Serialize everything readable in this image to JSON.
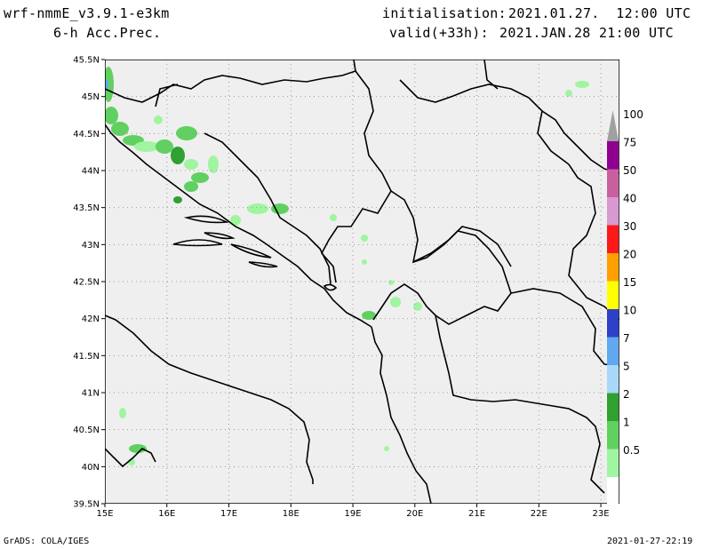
{
  "header": {
    "model": "wrf-nmmE_v3.9.1-e3km",
    "field": "6-h Acc.Prec.",
    "init_label": "initialisation:",
    "init_value": "2021.01.27.  12:00 UTC",
    "valid_label": "valid(+33h):",
    "valid_value": "2021.JAN.28 21:00 UTC"
  },
  "map": {
    "lat_labels": [
      "45.5N",
      "45N",
      "44.5N",
      "44N",
      "43.5N",
      "43N",
      "42.5N",
      "42N",
      "41.5N",
      "41N",
      "40.5N",
      "40N",
      "39.5N"
    ],
    "lon_labels": [
      "15E",
      "16E",
      "17E",
      "18E",
      "19E",
      "20E",
      "21E",
      "22E",
      "23E"
    ],
    "lon_range": [
      15,
      23.3
    ],
    "lat_range": [
      39.5,
      45.5
    ],
    "background_color": "#efefef",
    "grid": "dotted"
  },
  "colorbar": {
    "levels": [
      "0.5",
      "1",
      "2",
      "5",
      "7",
      "10",
      "15",
      "20",
      "30",
      "40",
      "50",
      "75",
      "100"
    ],
    "colors": [
      "#a0f5a0",
      "#60d060",
      "#30a030",
      "#a8d8f8",
      "#60a8f0",
      "#2e3fc8",
      "#ffff00",
      "#ffa000",
      "#ff1818",
      "#d898d0",
      "#c860a0",
      "#900090",
      "#a0a0a0"
    ]
  },
  "footer": {
    "left": "GrADS: COLA/IGES",
    "right": "2021-01-27-22:19"
  }
}
